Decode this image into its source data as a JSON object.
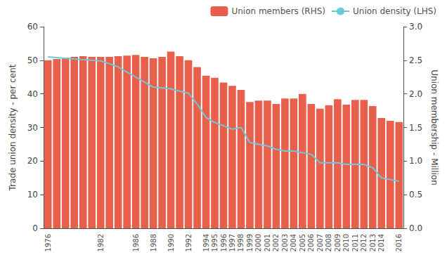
{
  "chart_data": {
    "type": "bar",
    "categories": [
      "1976",
      null,
      null,
      null,
      null,
      null,
      "1982",
      null,
      null,
      null,
      "1986",
      null,
      "1988",
      null,
      "1990",
      null,
      "1992",
      null,
      "1994",
      "1995",
      "1996",
      "1997",
      "1998",
      "1999",
      "2000",
      "2001",
      "2002",
      "2003",
      "2004",
      "2005",
      "2006",
      "2007",
      "2008",
      "2009",
      "2010",
      "2011",
      "2012",
      "2013",
      "2014",
      null,
      "2016"
    ],
    "series": [
      {
        "name": "Union members (RHS)",
        "type": "bar",
        "color": "#e8604c",
        "axis": "y2",
        "values": [
          2.5,
          2.52,
          2.54,
          2.55,
          2.56,
          2.55,
          2.55,
          2.55,
          2.56,
          2.57,
          2.58,
          2.55,
          2.53,
          2.55,
          2.63,
          2.56,
          2.5,
          2.4,
          2.27,
          2.24,
          2.17,
          2.12,
          2.06,
          1.88,
          1.9,
          1.9,
          1.85,
          1.93,
          1.93,
          2.0,
          1.85,
          1.78,
          1.83,
          1.92,
          1.84,
          1.91,
          1.91,
          1.82,
          1.64,
          1.6,
          1.58
        ]
      },
      {
        "name": "Union density (LHS)",
        "type": "line",
        "color": "#6ec6d8",
        "values": [
          51.0,
          50.8,
          50.6,
          50.4,
          50.2,
          50.0,
          49.8,
          49.0,
          48.0,
          46.5,
          45.0,
          43.5,
          42.0,
          41.8,
          41.5,
          40.8,
          40.2,
          37.0,
          33.0,
          31.5,
          30.5,
          29.5,
          30.0,
          25.5,
          25.0,
          24.5,
          23.5,
          23.0,
          23.0,
          22.5,
          22.0,
          19.5,
          19.5,
          19.5,
          19.0,
          19.0,
          19.0,
          18.0,
          15.0,
          14.5,
          14.0
        ]
      }
    ],
    "ylabel": "Trade union density - per cent",
    "y2label": "Union membership - Million",
    "ylim": [
      0,
      60
    ],
    "yticks": [
      0,
      10,
      20,
      30,
      40,
      50,
      60
    ],
    "y2lim": [
      0,
      3
    ],
    "y2ticks": [
      {
        "value": 0,
        "label": "0.0"
      },
      {
        "value": 0.5,
        "label": "0.5"
      },
      {
        "value": 1,
        "label": "1.0"
      },
      {
        "value": 1.5,
        "label": "1.5"
      },
      {
        "value": 2,
        "label": "2.0"
      },
      {
        "value": 2.5,
        "label": "2.5"
      },
      {
        "value": 3,
        "label": "3.0"
      }
    ],
    "grid": false,
    "legend": "upper right"
  }
}
